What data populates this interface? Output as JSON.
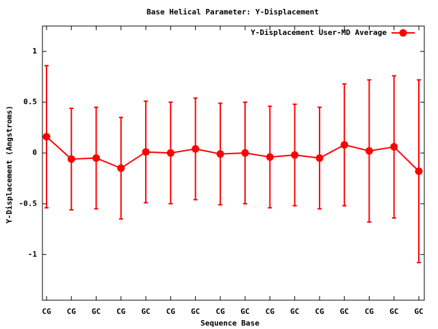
{
  "chart_data": {
    "type": "line",
    "title": "Base  Helical Parameter: Y-Displacement",
    "x_label": "Sequence Base",
    "y_label": "Y-Displacement (Angstroms)",
    "categories": [
      "CG",
      "CG",
      "GC",
      "CG",
      "GC",
      "CG",
      "GC",
      "CG",
      "GC",
      "CG",
      "GC",
      "CG",
      "GC",
      "CG",
      "GC",
      "GC"
    ],
    "series": [
      {
        "name": "Y-Displacement User-MD Average",
        "color": "#ff0000",
        "values": [
          0.16,
          -0.06,
          -0.05,
          -0.15,
          0.01,
          0.0,
          0.04,
          -0.01,
          0.0,
          -0.04,
          -0.02,
          -0.05,
          0.08,
          0.02,
          0.06,
          -0.18
        ],
        "errors": [
          0.7,
          0.5,
          0.5,
          0.5,
          0.5,
          0.5,
          0.5,
          0.5,
          0.5,
          0.5,
          0.5,
          0.5,
          0.6,
          0.7,
          0.7,
          0.9
        ]
      }
    ],
    "ylim": [
      -1.45,
      1.25
    ],
    "yticks": [
      -1,
      -0.5,
      0,
      0.5,
      1
    ],
    "grid": false,
    "legend": "top-right"
  }
}
